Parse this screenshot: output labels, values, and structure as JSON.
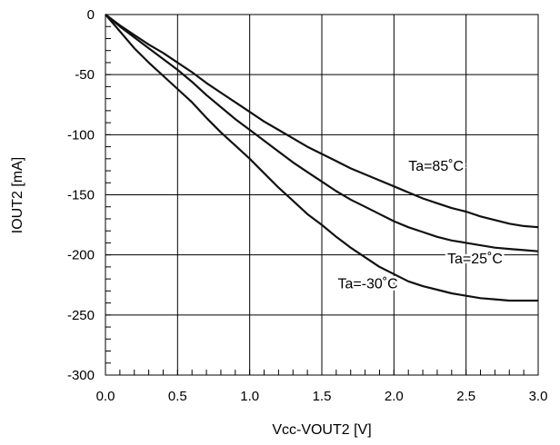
{
  "chart_data": {
    "type": "line",
    "title": "",
    "xlabel": "Vcc-VOUT2 [V]",
    "ylabel": "IOUT2 [mA]",
    "xlim": [
      0,
      3.0
    ],
    "ylim": [
      -300,
      0
    ],
    "x_ticks": [
      "0.0",
      "0.5",
      "1.0",
      "1.5",
      "2.0",
      "2.5",
      "3.0"
    ],
    "x_tick_values": [
      0,
      0.5,
      1.0,
      1.5,
      2.0,
      2.5,
      3.0
    ],
    "y_ticks": [
      "0",
      "-50",
      "-100",
      "-150",
      "-200",
      "-250",
      "-300"
    ],
    "y_tick_values": [
      0,
      -50,
      -100,
      -150,
      -200,
      -250,
      -300
    ],
    "grid": true,
    "line_color": "#111111",
    "series": [
      {
        "name": "Ta=85˚C",
        "x": [
          0,
          0.1,
          0.2,
          0.3,
          0.4,
          0.5,
          0.6,
          0.7,
          0.8,
          0.9,
          1.0,
          1.1,
          1.2,
          1.3,
          1.4,
          1.5,
          1.6,
          1.7,
          1.8,
          1.9,
          2.0,
          2.1,
          2.2,
          2.3,
          2.4,
          2.5,
          2.6,
          2.7,
          2.8,
          2.9,
          3.0
        ],
        "y": [
          0,
          -9,
          -17,
          -25,
          -32,
          -40,
          -48,
          -57,
          -65,
          -73,
          -81,
          -89,
          -96,
          -103,
          -110,
          -116,
          -122,
          -128,
          -133,
          -138,
          -143,
          -148,
          -153,
          -157,
          -161,
          -164,
          -168,
          -171,
          -174,
          -176,
          -177
        ]
      },
      {
        "name": "Ta=25˚C",
        "x": [
          0,
          0.1,
          0.2,
          0.3,
          0.4,
          0.5,
          0.6,
          0.7,
          0.8,
          0.9,
          1.0,
          1.1,
          1.2,
          1.3,
          1.4,
          1.5,
          1.6,
          1.7,
          1.8,
          1.9,
          2.0,
          2.1,
          2.2,
          2.3,
          2.4,
          2.5,
          2.6,
          2.7,
          2.8,
          2.9,
          3.0
        ],
        "y": [
          0,
          -10,
          -19,
          -28,
          -37,
          -46,
          -56,
          -67,
          -77,
          -87,
          -96,
          -105,
          -114,
          -123,
          -131,
          -139,
          -147,
          -154,
          -160,
          -166,
          -172,
          -177,
          -181,
          -185,
          -188,
          -190,
          -192,
          -194,
          -195,
          -196,
          -197
        ]
      },
      {
        "name": "Ta=-30˚C",
        "x": [
          0,
          0.1,
          0.2,
          0.3,
          0.4,
          0.5,
          0.6,
          0.7,
          0.8,
          0.9,
          1.0,
          1.1,
          1.2,
          1.3,
          1.4,
          1.5,
          1.6,
          1.7,
          1.8,
          1.9,
          2.0,
          2.1,
          2.2,
          2.3,
          2.4,
          2.5,
          2.6,
          2.7,
          2.8,
          2.9,
          3.0
        ],
        "y": [
          0,
          -14,
          -28,
          -40,
          -51,
          -62,
          -73,
          -86,
          -98,
          -109,
          -120,
          -132,
          -144,
          -155,
          -166,
          -175,
          -185,
          -194,
          -202,
          -210,
          -216,
          -222,
          -226,
          -229,
          -232,
          -234,
          -236,
          -237,
          -238,
          -238,
          -238
        ]
      }
    ],
    "series_labels": [
      {
        "text": "Ta=85˚C",
        "x": 2.1,
        "y": -130
      },
      {
        "text": "Ta=25˚C",
        "x": 2.37,
        "y": -207
      },
      {
        "text": "Ta=-30˚C",
        "x": 1.61,
        "y": -228
      }
    ]
  }
}
